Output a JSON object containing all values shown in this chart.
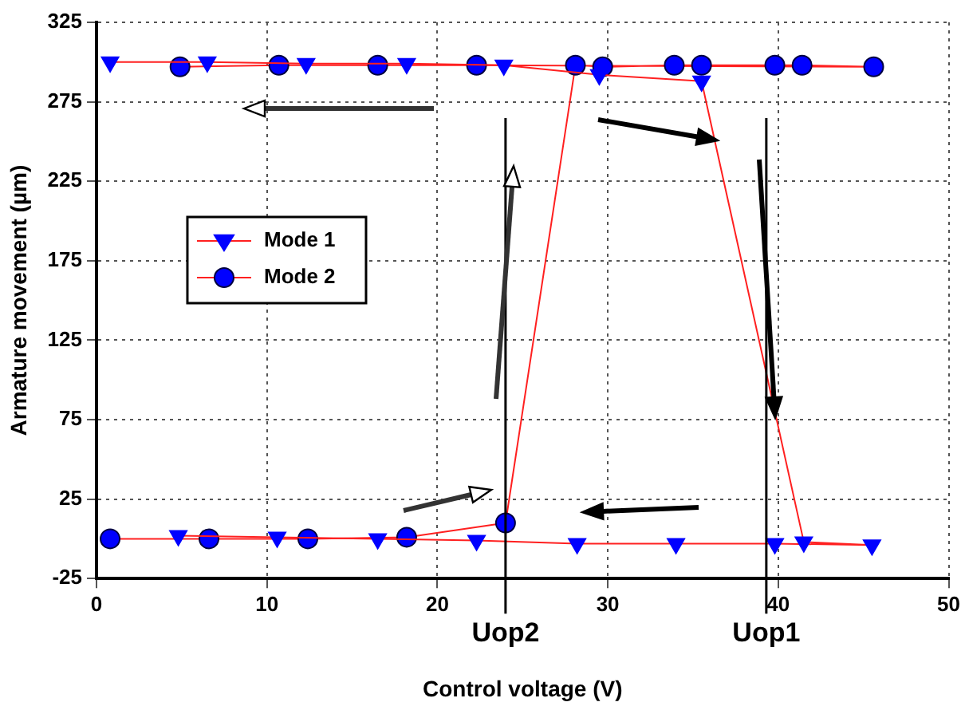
{
  "chart_data": {
    "type": "line",
    "xlabel": "Control voltage (V)",
    "ylabel": "Armature movement (µm)",
    "xlim": [
      0,
      50
    ],
    "xticks": [
      0,
      10,
      20,
      30,
      40,
      50
    ],
    "ylim": [
      -25,
      325
    ],
    "yticks": [
      -25,
      25,
      75,
      125,
      175,
      225,
      275,
      325
    ],
    "grid": true,
    "legend": "top left",
    "line_style": "solid",
    "series": [
      {
        "name": "Mode 1",
        "color": "#0000ff",
        "marker": "triangle",
        "x": [
          0.8,
          6.5,
          12.3,
          18.2,
          23.9,
          29.5,
          35.5,
          41.5,
          45.5,
          39.8,
          34,
          28.2,
          22.3,
          16.5,
          10.6,
          4.8
        ],
        "values": [
          300,
          300,
          299,
          299,
          298,
          292,
          288,
          -2,
          -4,
          -3,
          -3,
          -3,
          -1,
          0,
          1,
          2
        ]
      },
      {
        "name": "Mode 2",
        "color": "#0000ff",
        "marker": "circle",
        "x": [
          0.8,
          6.6,
          12.4,
          18.2,
          24,
          28.1,
          29.7,
          33.9,
          35.5,
          39.8,
          41.4,
          45.6,
          22.3,
          16.5,
          10.7,
          4.9
        ],
        "values": [
          0,
          0,
          0,
          1,
          10,
          298,
          297,
          298,
          298,
          298,
          298,
          297,
          298,
          298,
          298,
          297
        ]
      }
    ],
    "ref_lines": [
      {
        "axis": "x",
        "value": 24,
        "label": "Uop2"
      },
      {
        "axis": "x",
        "value": 39.3,
        "label": "Uop1"
      }
    ]
  }
}
